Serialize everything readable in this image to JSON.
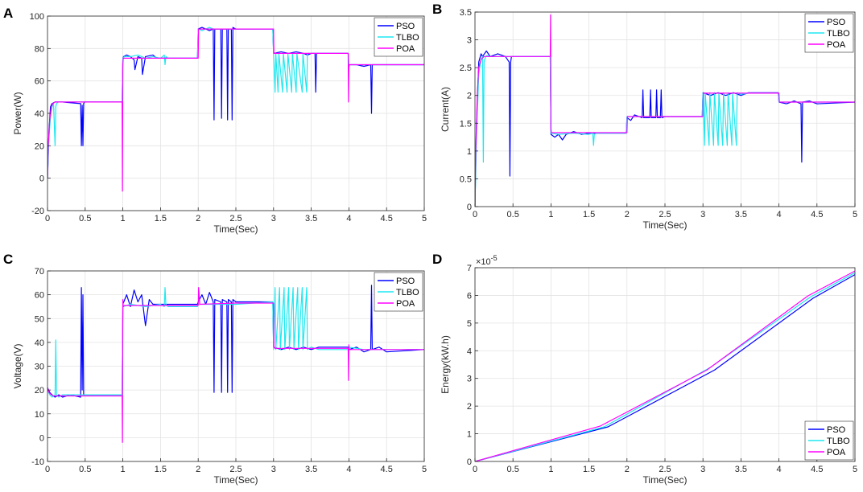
{
  "colors": {
    "PSO": "#0000ff",
    "TLBO": "#1ee8f0",
    "POA": "#ff00ff"
  },
  "chart_data": [
    {
      "letter": "A",
      "type": "line",
      "xlabel": "Time(Sec)",
      "ylabel": "Power(W)",
      "xlim": [
        0,
        5
      ],
      "ylim": [
        -20,
        100
      ],
      "xticks": [
        0,
        0.5,
        1,
        1.5,
        2,
        2.5,
        3,
        3.5,
        4,
        4.5,
        5
      ],
      "xtick_labels": [
        "0",
        "0.5",
        "1",
        "1.5",
        "2",
        "2.5",
        "3",
        "3.5",
        "4",
        "4.5",
        "5"
      ],
      "yticks": [
        -20,
        0,
        20,
        40,
        60,
        80,
        100
      ],
      "ytick_labels": [
        "-20",
        "0",
        "20",
        "40",
        "60",
        "80",
        "100"
      ],
      "legend": [
        "PSO",
        "TLBO",
        "POA"
      ],
      "legend_loc": "top-right",
      "series": [
        {
          "name": "PSO",
          "x": [
            0,
            0.02,
            0.04,
            0.06,
            0.1,
            0.2,
            0.44,
            0.45,
            0.46,
            0.47,
            0.48,
            0.49,
            0.5,
            0.99,
            1.0,
            1.01,
            1.05,
            1.1,
            1.15,
            1.16,
            1.2,
            1.25,
            1.26,
            1.3,
            1.4,
            1.45,
            1.5,
            1.99,
            2.0,
            2.05,
            2.1,
            2.15,
            2.2,
            2.21,
            2.22,
            2.3,
            2.31,
            2.32,
            2.38,
            2.39,
            2.4,
            2.44,
            2.45,
            2.46,
            2.5,
            2.6,
            2.99,
            3.0,
            3.1,
            3.2,
            3.3,
            3.4,
            3.45,
            3.5,
            3.55,
            3.56,
            3.57,
            3.6,
            3.8,
            3.99,
            4.0,
            4.1,
            4.2,
            4.29,
            4.3,
            4.31,
            4.4,
            4.6,
            5.0
          ],
          "y": [
            0,
            30,
            44,
            46,
            47,
            47,
            46,
            20,
            45,
            20,
            46,
            47,
            47,
            47,
            74,
            75,
            76,
            75,
            73,
            67,
            75,
            74,
            64,
            75,
            76,
            74,
            74,
            74,
            92,
            93,
            92,
            91,
            92,
            36,
            92,
            92,
            37,
            92,
            92,
            36,
            92,
            92,
            36,
            93,
            92,
            92,
            92,
            77,
            78,
            77,
            78,
            77,
            76,
            77,
            77,
            53,
            77,
            77,
            77,
            77,
            70,
            70,
            69,
            70,
            40,
            70,
            70,
            70,
            70
          ]
        },
        {
          "name": "TLBO",
          "x": [
            0,
            0.02,
            0.04,
            0.06,
            0.08,
            0.1,
            0.11,
            0.12,
            0.14,
            0.16,
            0.99,
            1.0,
            1.02,
            1.1,
            1.2,
            1.3,
            1.4,
            1.5,
            1.55,
            1.56,
            1.57,
            1.6,
            1.99,
            2.0,
            2.05,
            2.1,
            2.15,
            2.2,
            2.3,
            2.99,
            3.0,
            3.02,
            3.03,
            3.06,
            3.07,
            3.12,
            3.13,
            3.18,
            3.19,
            3.24,
            3.25,
            3.3,
            3.31,
            3.38,
            3.39,
            3.44,
            3.45,
            3.5,
            3.6,
            3.99,
            4.0,
            4.1,
            4.3,
            4.6,
            5.0
          ],
          "y": [
            0,
            25,
            38,
            44,
            46,
            20,
            44,
            46,
            47,
            47,
            47,
            74,
            75,
            75,
            76,
            74,
            75,
            74,
            76,
            70,
            75,
            74,
            74,
            92,
            91,
            92,
            93,
            92,
            92,
            92,
            77,
            53,
            77,
            53,
            77,
            53,
            77,
            53,
            77,
            53,
            77,
            53,
            77,
            53,
            77,
            53,
            77,
            77,
            77,
            77,
            70,
            70,
            70,
            70,
            70
          ]
        },
        {
          "name": "POA",
          "x": [
            0,
            0.01,
            0.03,
            0.05,
            0.07,
            0.1,
            0.15,
            0.99,
            0.995,
            1.0,
            1.005,
            1.02,
            1.1,
            2.0,
            2.005,
            2.02,
            2.1,
            3.0,
            3.005,
            3.02,
            3.5,
            3.99,
            3.995,
            4.0,
            4.005,
            4.02,
            5.0
          ],
          "y": [
            0,
            20,
            36,
            44,
            46,
            47,
            47,
            47,
            -8,
            70,
            74,
            74,
            74,
            74,
            92,
            92,
            92,
            92,
            77,
            77,
            77,
            77,
            47,
            68,
            70,
            70,
            70
          ]
        }
      ]
    },
    {
      "letter": "B",
      "type": "line",
      "xlabel": "Time(Sec)",
      "ylabel": "Current(A)",
      "xlim": [
        0,
        5
      ],
      "ylim": [
        0,
        3.5
      ],
      "xticks": [
        0,
        0.5,
        1,
        1.5,
        2,
        2.5,
        3,
        3.5,
        4,
        4.5,
        5
      ],
      "xtick_labels": [
        "0",
        "0.5",
        "1",
        "1.5",
        "2",
        "2.5",
        "3",
        "3.5",
        "4",
        "4.5",
        "5"
      ],
      "yticks": [
        0,
        0.5,
        1,
        1.5,
        2,
        2.5,
        3,
        3.5
      ],
      "ytick_labels": [
        "0",
        "0.5",
        "1",
        "1.5",
        "2",
        "2.5",
        "3",
        "3.5"
      ],
      "legend": [
        "PSO",
        "TLBO",
        "POA"
      ],
      "legend_loc": "top-right",
      "series": [
        {
          "name": "PSO",
          "x": [
            0,
            0.02,
            0.05,
            0.08,
            0.1,
            0.15,
            0.2,
            0.3,
            0.4,
            0.45,
            0.46,
            0.47,
            0.48,
            0.5,
            0.99,
            1.0,
            1.05,
            1.1,
            1.15,
            1.2,
            1.3,
            1.4,
            1.5,
            1.99,
            2.0,
            2.05,
            2.1,
            2.2,
            2.21,
            2.22,
            2.3,
            2.31,
            2.32,
            2.38,
            2.39,
            2.4,
            2.44,
            2.45,
            2.46,
            2.5,
            2.99,
            3.0,
            3.1,
            3.2,
            3.3,
            3.4,
            3.5,
            3.6,
            3.99,
            4.0,
            4.1,
            4.2,
            4.29,
            4.3,
            4.31,
            4.4,
            4.5,
            5.0
          ],
          "y": [
            0,
            1.5,
            2.6,
            2.75,
            2.7,
            2.8,
            2.7,
            2.75,
            2.7,
            2.6,
            0.55,
            2.6,
            2.7,
            2.7,
            2.7,
            1.3,
            1.25,
            1.3,
            1.2,
            1.3,
            1.35,
            1.3,
            1.32,
            1.32,
            1.6,
            1.55,
            1.65,
            1.6,
            2.1,
            1.6,
            1.6,
            2.1,
            1.6,
            1.6,
            2.1,
            1.6,
            1.6,
            2.1,
            1.6,
            1.62,
            1.62,
            2.05,
            2.0,
            2.05,
            2.0,
            2.05,
            2.0,
            2.05,
            2.05,
            1.88,
            1.85,
            1.9,
            1.85,
            0.8,
            1.88,
            1.9,
            1.85,
            1.88
          ]
        },
        {
          "name": "TLBO",
          "x": [
            0,
            0.02,
            0.05,
            0.08,
            0.1,
            0.11,
            0.12,
            0.14,
            0.16,
            0.2,
            0.99,
            1.0,
            1.1,
            1.3,
            1.5,
            1.55,
            1.56,
            1.57,
            1.6,
            1.99,
            2.0,
            2.2,
            2.5,
            2.99,
            3.0,
            3.02,
            3.03,
            3.08,
            3.09,
            3.14,
            3.15,
            3.2,
            3.21,
            3.26,
            3.27,
            3.32,
            3.33,
            3.38,
            3.39,
            3.44,
            3.45,
            3.5,
            3.6,
            3.99,
            4.0,
            4.2,
            4.6,
            5.0
          ],
          "y": [
            0,
            1.2,
            2.4,
            2.65,
            2.7,
            0.8,
            2.6,
            2.7,
            2.72,
            2.7,
            2.7,
            1.32,
            1.3,
            1.32,
            1.3,
            1.32,
            1.1,
            1.3,
            1.32,
            1.32,
            1.62,
            1.62,
            1.62,
            1.62,
            2.05,
            1.1,
            2.05,
            1.1,
            2.05,
            1.1,
            2.05,
            1.1,
            2.05,
            1.1,
            2.05,
            1.1,
            2.05,
            1.1,
            2.05,
            1.1,
            2.05,
            2.02,
            2.04,
            2.04,
            1.88,
            1.88,
            1.88,
            1.88
          ]
        },
        {
          "name": "POA",
          "x": [
            0,
            0.01,
            0.03,
            0.05,
            0.08,
            0.12,
            0.99,
            0.995,
            1.0,
            1.005,
            1.02,
            1.1,
            2.0,
            2.005,
            2.02,
            2.5,
            3.0,
            3.005,
            3.02,
            3.5,
            4.0,
            4.005,
            4.02,
            5.0
          ],
          "y": [
            0,
            1.0,
            2.0,
            2.5,
            2.65,
            2.7,
            2.7,
            3.45,
            1.4,
            1.33,
            1.33,
            1.33,
            1.33,
            1.62,
            1.62,
            1.62,
            1.62,
            2.05,
            2.04,
            2.04,
            2.04,
            1.88,
            1.88,
            1.88
          ]
        }
      ]
    },
    {
      "letter": "C",
      "type": "line",
      "xlabel": "Time(Sec)",
      "ylabel": "Voltage(V)",
      "xlim": [
        0,
        5
      ],
      "ylim": [
        -10,
        70
      ],
      "xticks": [
        0,
        0.5,
        1,
        1.5,
        2,
        2.5,
        3,
        3.5,
        4,
        4.5,
        5
      ],
      "xtick_labels": [
        "0",
        "0.5",
        "1",
        "1.5",
        "2",
        "2.5",
        "3",
        "3.5",
        "4",
        "4.5",
        "5"
      ],
      "yticks": [
        -10,
        0,
        10,
        20,
        30,
        40,
        50,
        60,
        70
      ],
      "ytick_labels": [
        "-10",
        "0",
        "10",
        "20",
        "30",
        "40",
        "50",
        "60",
        "70"
      ],
      "legend": [
        "PSO",
        "TLBO",
        "POA"
      ],
      "legend_loc": "top-right",
      "series": [
        {
          "name": "PSO",
          "x": [
            0,
            0.03,
            0.06,
            0.1,
            0.15,
            0.2,
            0.3,
            0.44,
            0.45,
            0.46,
            0.47,
            0.48,
            0.5,
            0.99,
            1.0,
            1.05,
            1.1,
            1.15,
            1.2,
            1.25,
            1.3,
            1.35,
            1.4,
            1.5,
            1.99,
            2.0,
            2.05,
            2.1,
            2.15,
            2.2,
            2.21,
            2.22,
            2.3,
            2.31,
            2.32,
            2.38,
            2.39,
            2.4,
            2.44,
            2.45,
            2.46,
            2.5,
            2.99,
            3.0,
            3.1,
            3.2,
            3.3,
            3.4,
            3.5,
            3.6,
            3.99,
            4.0,
            4.1,
            4.2,
            4.29,
            4.3,
            4.31,
            4.4,
            4.5,
            5.0
          ],
          "y": [
            21,
            19,
            18,
            17,
            18,
            17,
            18,
            17,
            63,
            20,
            60,
            18,
            18,
            18,
            56,
            60,
            55,
            62,
            57,
            60,
            47,
            58,
            56,
            56,
            56,
            57,
            60,
            56,
            61,
            57,
            19,
            58,
            57,
            19,
            58,
            57,
            19,
            58,
            57,
            19,
            58,
            57,
            57,
            38,
            37,
            38,
            37,
            38,
            37,
            38,
            38,
            37,
            38,
            36,
            37,
            64,
            37,
            38,
            36,
            37
          ]
        },
        {
          "name": "TLBO",
          "x": [
            0,
            0.03,
            0.06,
            0.1,
            0.11,
            0.12,
            0.15,
            0.2,
            0.99,
            1.0,
            1.1,
            1.3,
            1.5,
            1.55,
            1.56,
            1.57,
            1.6,
            1.99,
            2.0,
            2.2,
            2.5,
            2.99,
            3.0,
            3.02,
            3.03,
            3.08,
            3.09,
            3.14,
            3.15,
            3.2,
            3.21,
            3.26,
            3.27,
            3.32,
            3.33,
            3.38,
            3.39,
            3.44,
            3.45,
            3.5,
            3.6,
            3.99,
            4.0,
            4.2,
            4.6,
            5.0
          ],
          "y": [
            20,
            18,
            17,
            18,
            41,
            18,
            17,
            18,
            18,
            55,
            56,
            55,
            56,
            55,
            63,
            56,
            55,
            55,
            56,
            56,
            56,
            57,
            37,
            63,
            37,
            63,
            37,
            63,
            37,
            63,
            37,
            63,
            37,
            63,
            37,
            63,
            37,
            63,
            37,
            38,
            37,
            37,
            38,
            37,
            37,
            37
          ]
        },
        {
          "name": "POA",
          "x": [
            0,
            0.02,
            0.05,
            0.08,
            0.12,
            0.99,
            0.995,
            1.0,
            1.005,
            1.02,
            1.5,
            2.0,
            2.005,
            2.02,
            2.5,
            3.0,
            3.005,
            3.02,
            3.5,
            3.99,
            3.995,
            4.0,
            4.005,
            4.02,
            5.0
          ],
          "y": [
            21,
            19,
            18,
            17.5,
            17.5,
            17.5,
            -2,
            58,
            55,
            55.5,
            55.5,
            55.5,
            63,
            56,
            56.5,
            56.5,
            38,
            37.5,
            37.5,
            37.5,
            24,
            39,
            37,
            37,
            37
          ]
        }
      ]
    },
    {
      "letter": "D",
      "type": "line",
      "xlabel": "Time(Sec)",
      "ylabel": "Energy(kW.h)",
      "exponent_label": "×10",
      "exponent_power": "-5",
      "xlim": [
        0,
        5
      ],
      "ylim": [
        0,
        7
      ],
      "xticks": [
        0,
        0.5,
        1,
        1.5,
        2,
        2.5,
        3,
        3.5,
        4,
        4.5,
        5
      ],
      "xtick_labels": [
        "0",
        "0.5",
        "1",
        "1.5",
        "2",
        "2.5",
        "3",
        "3.5",
        "4",
        "4.5",
        "5"
      ],
      "yticks": [
        0,
        1,
        2,
        3,
        4,
        5,
        6,
        7
      ],
      "ytick_labels": [
        "0",
        "1",
        "2",
        "3",
        "4",
        "5",
        "6",
        "7"
      ],
      "legend": [
        "PSO",
        "TLBO",
        "POA"
      ],
      "legend_loc": "bottom-right",
      "series": [
        {
          "name": "PSO",
          "x": [
            0,
            1.75,
            3.15,
            4.45,
            5.0
          ],
          "y": [
            0,
            1.25,
            3.3,
            5.9,
            6.75
          ]
        },
        {
          "name": "TLBO",
          "x": [
            0,
            1.7,
            3.1,
            4.42,
            5.0
          ],
          "y": [
            0,
            1.25,
            3.4,
            5.95,
            6.82
          ]
        },
        {
          "name": "POA",
          "x": [
            0,
            1.65,
            3.05,
            4.38,
            5.0
          ],
          "y": [
            0,
            1.28,
            3.3,
            5.98,
            6.88
          ]
        }
      ]
    }
  ]
}
